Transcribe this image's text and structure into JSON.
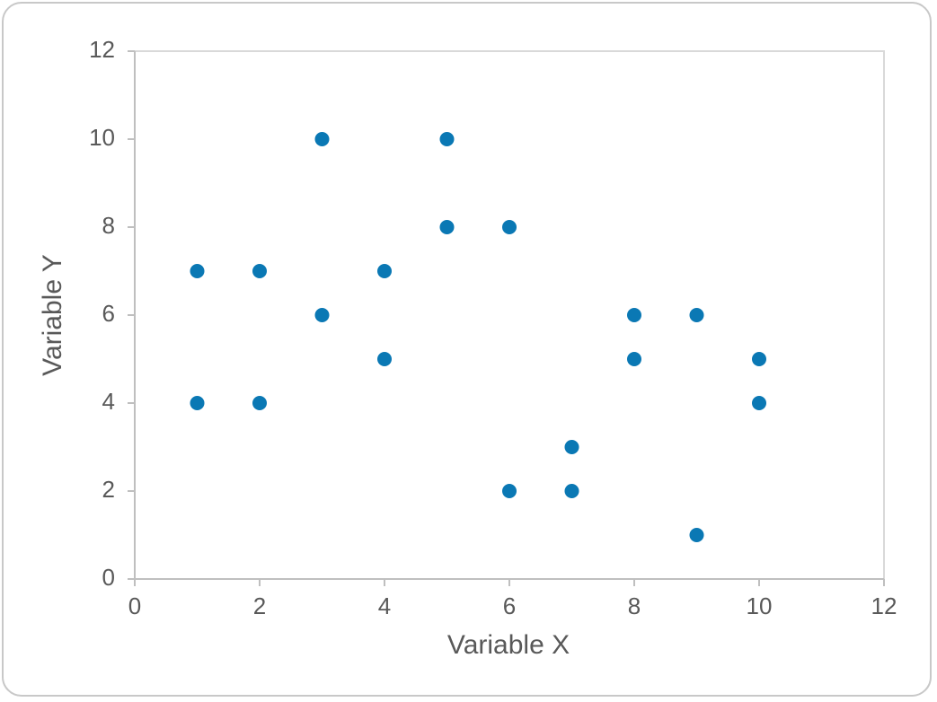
{
  "chart_data": {
    "type": "scatter",
    "x_label": "Variable X",
    "y_label": "Variable Y",
    "x": [
      1,
      1,
      2,
      2,
      3,
      3,
      4,
      4,
      5,
      5,
      6,
      6,
      7,
      7,
      8,
      8,
      9,
      9,
      10,
      10
    ],
    "values": [
      7,
      4,
      7,
      4,
      10,
      6,
      7,
      5,
      10,
      8,
      8,
      2,
      3,
      2,
      6,
      5,
      6,
      1,
      5,
      4
    ],
    "color": "#0a78b4",
    "xlim": [
      0,
      12
    ],
    "xticks": [
      0,
      2,
      4,
      6,
      8,
      10,
      12
    ],
    "ylim": [
      0,
      12
    ],
    "yticks": [
      0,
      2,
      4,
      6,
      8,
      10,
      12
    ]
  }
}
